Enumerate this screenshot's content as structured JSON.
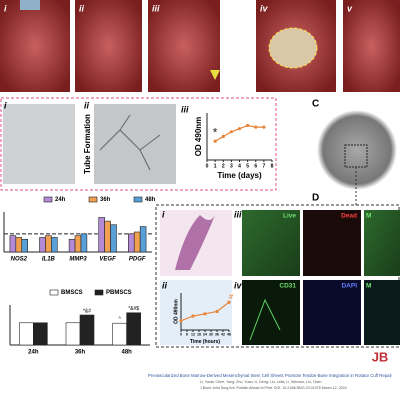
{
  "panels": {
    "a": [
      "i",
      "ii",
      "iii",
      "iv",
      "v"
    ],
    "b": [
      "i",
      "ii",
      "iii"
    ],
    "tube": "Tube Formation",
    "c": "C",
    "d": "D",
    "d_labels": [
      "i",
      "ii",
      "iii",
      "iv"
    ],
    "stains": [
      "Live",
      "Dead",
      "M",
      "CD31",
      "DAPI",
      "M"
    ]
  },
  "chart_data": [
    {
      "type": "line",
      "ylabel": "OD 490nm",
      "xlabel": "Time (days)",
      "color": "#e8843a",
      "x": [
        1,
        2,
        3,
        4,
        5,
        6,
        7
      ],
      "values": [
        1.2,
        1.5,
        1.8,
        2.0,
        2.2,
        2.1,
        2.1
      ],
      "xlim": [
        0,
        8
      ],
      "ylim": [
        0,
        3
      ],
      "xticks": [
        0,
        1,
        2,
        3,
        4,
        5,
        6,
        7,
        8
      ],
      "annotation": "*"
    },
    {
      "type": "bar",
      "categories": [
        "NOS2",
        "IL1B",
        "MMP3",
        "VEGF",
        "PDGF"
      ],
      "series": [
        {
          "name": "24h",
          "color": "#b48ad6",
          "values": [
            0.9,
            0.8,
            0.7,
            1.9,
            1.0
          ]
        },
        {
          "name": "36h",
          "color": "#f0a050",
          "values": [
            0.8,
            0.9,
            0.9,
            1.7,
            1.1
          ]
        },
        {
          "name": "48h",
          "color": "#5aa0d8",
          "values": [
            0.7,
            0.8,
            1.0,
            1.5,
            1.4
          ]
        }
      ],
      "ylim": [
        0,
        2.2
      ],
      "reference": 1
    },
    {
      "type": "bar",
      "categories": [
        "24h",
        "36h",
        "48h"
      ],
      "series": [
        {
          "name": "BMSCS",
          "color": "#ffffff",
          "values": [
            1.0,
            1.0,
            0.98
          ],
          "annotations": [
            null,
            null,
            "^"
          ]
        },
        {
          "name": "PBMSCS",
          "color": "#222222",
          "values": [
            1.0,
            1.35,
            1.45
          ],
          "annotations": [
            null,
            "*&#",
            "*&#$"
          ]
        }
      ],
      "ylim": [
        0,
        1.8
      ]
    },
    {
      "type": "line",
      "ylabel": "OD 490nm",
      "xlabel": "Time (hours)",
      "color": "#e8843a",
      "x": [
        0,
        12,
        24,
        36,
        48
      ],
      "values": [
        0.2,
        0.3,
        0.35,
        0.4,
        0.6
      ],
      "xlim": [
        0,
        48
      ],
      "ylim": [
        0,
        0.8
      ],
      "xticks": [
        0,
        6,
        12,
        18,
        24,
        30,
        36,
        42,
        48
      ],
      "annotation": "#"
    }
  ],
  "citation": {
    "title": "Prevascularized Bone Marrow-Derived Mesenchymal Stem Cell Sheets Promote Tendon-Bone Integration in Rotator Cuff Repair",
    "authors": "Li, Yuxia; Chen, Yang; Zhu, Yuan; Li, Deng; Liu, Lelia; Li, Wenxue; Liu, Chen",
    "journal": "J Bone Joint Surg Am. Publish Ahead of Print. DOI: 10.2106/JBJS.23.01375 March 12, 2024"
  },
  "logo": "JB"
}
